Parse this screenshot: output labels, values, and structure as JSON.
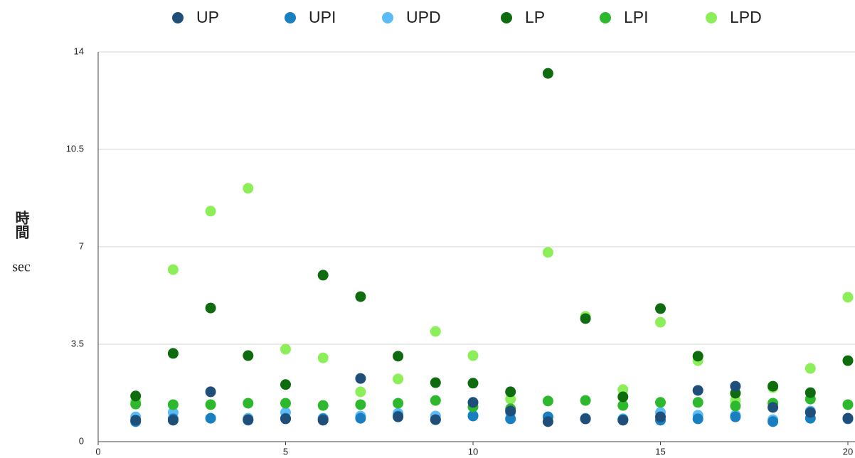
{
  "chart_data": {
    "type": "scatter",
    "y_label": "時間",
    "y_unit": "sec",
    "x": [
      1,
      2,
      3,
      4,
      5,
      6,
      7,
      8,
      9,
      10,
      11,
      12,
      13,
      14,
      15,
      16,
      17,
      18,
      19,
      20
    ],
    "xlim": [
      0,
      20
    ],
    "xticks": [
      0,
      5,
      10,
      15,
      20
    ],
    "ylim": [
      0,
      14
    ],
    "yticks": [
      0,
      3.5,
      7,
      10.5,
      14
    ],
    "grid": true,
    "legend": "top",
    "series": [
      {
        "name": "UPD",
        "color": "#5bbcf5",
        "values": [
          0.89,
          1.05,
          0.84,
          0.84,
          1.05,
          0.84,
          0.92,
          1.02,
          0.92,
          0.95,
          1.05,
          0.89,
          0.84,
          0.82,
          1.05,
          0.95,
          0.95,
          0.79,
          1.1,
          0.84
        ]
      },
      {
        "name": "UPI",
        "color": "#1a7fc1",
        "values": [
          0.72,
          0.82,
          0.84,
          0.77,
          0.84,
          0.82,
          0.84,
          0.92,
          0.79,
          0.92,
          0.82,
          0.89,
          0.82,
          0.79,
          0.77,
          0.82,
          0.89,
          0.72,
          0.84,
          0.82
        ]
      },
      {
        "name": "LPD",
        "color": "#8cef5a",
        "values": [
          1.45,
          6.18,
          8.28,
          9.1,
          3.32,
          3.01,
          1.79,
          2.25,
          3.96,
          3.09,
          1.53,
          6.8,
          4.5,
          1.87,
          4.29,
          2.91,
          1.48,
          1.94,
          2.63,
          5.19
        ]
      },
      {
        "name": "LPI",
        "color": "#2eb82e",
        "values": [
          1.35,
          1.33,
          1.33,
          1.38,
          1.38,
          1.3,
          1.33,
          1.38,
          1.48,
          1.25,
          1.18,
          1.46,
          1.48,
          1.3,
          1.41,
          1.41,
          1.28,
          1.38,
          1.53,
          1.33
        ]
      },
      {
        "name": "LP",
        "color": "#0e6b0e",
        "values": [
          1.64,
          3.17,
          4.8,
          3.09,
          2.05,
          5.98,
          5.21,
          3.07,
          2.12,
          2.1,
          1.79,
          13.23,
          4.42,
          1.61,
          4.78,
          3.07,
          1.74,
          1.99,
          1.76,
          2.91
        ]
      },
      {
        "name": "UP",
        "color": "#1f4e79",
        "values": [
          0.77,
          0.77,
          1.79,
          0.79,
          0.82,
          0.77,
          2.27,
          0.89,
          0.79,
          1.41,
          1.1,
          0.72,
          0.82,
          0.77,
          0.89,
          1.84,
          1.99,
          1.23,
          1.05,
          0.84
        ]
      }
    ],
    "legend_order": [
      "UP",
      "UPI",
      "UPD",
      "LP",
      "LPI",
      "LPD"
    ]
  }
}
